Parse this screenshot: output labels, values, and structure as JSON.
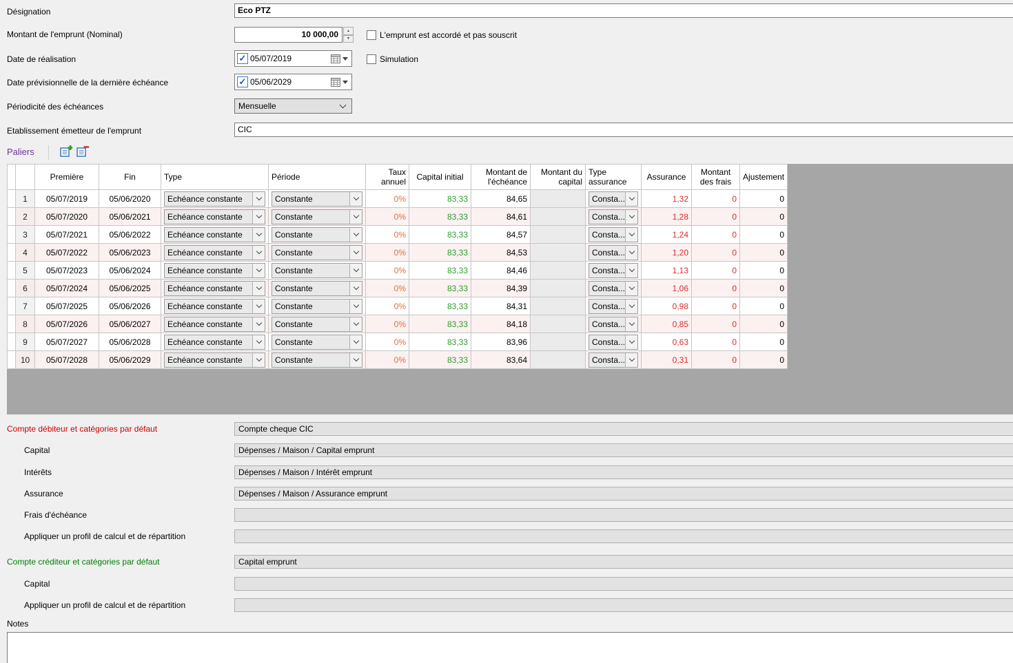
{
  "form": {
    "designation": {
      "label": "Désignation",
      "value": "Eco PTZ"
    },
    "montant": {
      "label": "Montant de l'emprunt (Nominal)",
      "value": "10 000,00"
    },
    "accorde_checkbox_label": "L'emprunt est accordé et pas souscrit",
    "date_realisation": {
      "label": "Date de réalisation",
      "value": "05/07/2019",
      "checked": "✓"
    },
    "simulation_checkbox_label": "Simulation",
    "date_derniere": {
      "label": "Date prévisionnelle de la dernière échéance",
      "value": "05/06/2029",
      "checked": "✓"
    },
    "periodicite": {
      "label": "Périodicité des échéances",
      "value": "Mensuelle"
    },
    "etablissement": {
      "label": "Etablissement émetteur de l'emprunt",
      "value": "CIC"
    }
  },
  "paliers": {
    "title": "Paliers",
    "columns": {
      "premiere": "Première",
      "fin": "Fin",
      "type": "Type",
      "periode": "Période",
      "taux": "Taux annuel",
      "capital_initial": "Capital initial",
      "montant_echeance": "Montant de l'échéance",
      "montant_capital": "Montant du capital",
      "type_assurance": "Type assurance",
      "assurance": "Assurance",
      "frais": "Montant des frais",
      "ajustement": "Ajustement"
    },
    "rows": [
      {
        "n": "1",
        "premiere": "05/07/2019",
        "fin": "05/06/2020",
        "type": "Echéance constante",
        "periode": "Constante",
        "taux": "0%",
        "capital_initial": "83,33",
        "montant_echeance": "84,65",
        "montant_capital": "",
        "type_assurance": "Consta...",
        "assurance": "1,32",
        "frais": "0",
        "ajustement": "0"
      },
      {
        "n": "2",
        "premiere": "05/07/2020",
        "fin": "05/06/2021",
        "type": "Echéance constante",
        "periode": "Constante",
        "taux": "0%",
        "capital_initial": "83,33",
        "montant_echeance": "84,61",
        "montant_capital": "",
        "type_assurance": "Consta...",
        "assurance": "1,28",
        "frais": "0",
        "ajustement": "0"
      },
      {
        "n": "3",
        "premiere": "05/07/2021",
        "fin": "05/06/2022",
        "type": "Echéance constante",
        "periode": "Constante",
        "taux": "0%",
        "capital_initial": "83,33",
        "montant_echeance": "84,57",
        "montant_capital": "",
        "type_assurance": "Consta...",
        "assurance": "1,24",
        "frais": "0",
        "ajustement": "0"
      },
      {
        "n": "4",
        "premiere": "05/07/2022",
        "fin": "05/06/2023",
        "type": "Echéance constante",
        "periode": "Constante",
        "taux": "0%",
        "capital_initial": "83,33",
        "montant_echeance": "84,53",
        "montant_capital": "",
        "type_assurance": "Consta...",
        "assurance": "1,20",
        "frais": "0",
        "ajustement": "0"
      },
      {
        "n": "5",
        "premiere": "05/07/2023",
        "fin": "05/06/2024",
        "type": "Echéance constante",
        "periode": "Constante",
        "taux": "0%",
        "capital_initial": "83,33",
        "montant_echeance": "84,46",
        "montant_capital": "",
        "type_assurance": "Consta...",
        "assurance": "1,13",
        "frais": "0",
        "ajustement": "0"
      },
      {
        "n": "6",
        "premiere": "05/07/2024",
        "fin": "05/06/2025",
        "type": "Echéance constante",
        "periode": "Constante",
        "taux": "0%",
        "capital_initial": "83,33",
        "montant_echeance": "84,39",
        "montant_capital": "",
        "type_assurance": "Consta...",
        "assurance": "1,06",
        "frais": "0",
        "ajustement": "0"
      },
      {
        "n": "7",
        "premiere": "05/07/2025",
        "fin": "05/06/2026",
        "type": "Echéance constante",
        "periode": "Constante",
        "taux": "0%",
        "capital_initial": "83,33",
        "montant_echeance": "84,31",
        "montant_capital": "",
        "type_assurance": "Consta...",
        "assurance": "0,98",
        "frais": "0",
        "ajustement": "0"
      },
      {
        "n": "8",
        "premiere": "05/07/2026",
        "fin": "05/06/2027",
        "type": "Echéance constante",
        "periode": "Constante",
        "taux": "0%",
        "capital_initial": "83,33",
        "montant_echeance": "84,18",
        "montant_capital": "",
        "type_assurance": "Consta...",
        "assurance": "0,85",
        "frais": "0",
        "ajustement": "0"
      },
      {
        "n": "9",
        "premiere": "05/07/2027",
        "fin": "05/06/2028",
        "type": "Echéance constante",
        "periode": "Constante",
        "taux": "0%",
        "capital_initial": "83,33",
        "montant_echeance": "83,96",
        "montant_capital": "",
        "type_assurance": "Consta...",
        "assurance": "0,63",
        "frais": "0",
        "ajustement": "0"
      },
      {
        "n": "10",
        "premiere": "05/07/2028",
        "fin": "05/06/2029",
        "type": "Echéance constante",
        "periode": "Constante",
        "taux": "0%",
        "capital_initial": "83,33",
        "montant_echeance": "83,64",
        "montant_capital": "",
        "type_assurance": "Consta...",
        "assurance": "0,31",
        "frais": "0",
        "ajustement": "0"
      }
    ],
    "toolbar": {
      "add_icon": "add-row",
      "delete_icon": "delete-row"
    }
  },
  "bottom": {
    "rows": [
      {
        "label": "Compte débiteur et catégories par défaut",
        "value": "Compte cheque CIC",
        "style": "red"
      },
      {
        "label": "Capital",
        "value": "Dépenses / Maison / Capital emprunt",
        "style": "indent"
      },
      {
        "label": "Intérêts",
        "value": "Dépenses / Maison / Intérêt emprunt",
        "style": "indent"
      },
      {
        "label": "Assurance",
        "value": "Dépenses / Maison / Assurance emprunt",
        "style": "indent"
      },
      {
        "label": "Frais d'échéance",
        "value": "",
        "style": "indent"
      },
      {
        "label": "Appliquer un profil de calcul et de répartition",
        "value": "",
        "style": "indent"
      },
      {
        "label": "Compte créditeur et catégories par défaut",
        "value": "Capital emprunt",
        "style": "green"
      },
      {
        "label": "Capital",
        "value": "",
        "style": "indent"
      },
      {
        "label": "Appliquer un profil de calcul et de répartition",
        "value": "",
        "style": "indent"
      }
    ]
  },
  "notes_label": "Notes",
  "colors": {
    "label_red": "#cc0000",
    "label_green": "#008000",
    "title_purple": "#7030a0",
    "taux_orange": "#e0703a",
    "capital_green": "#2e9e2e",
    "assurance_red": "#e02b2b",
    "grid_gray": "#a6a6a6"
  }
}
